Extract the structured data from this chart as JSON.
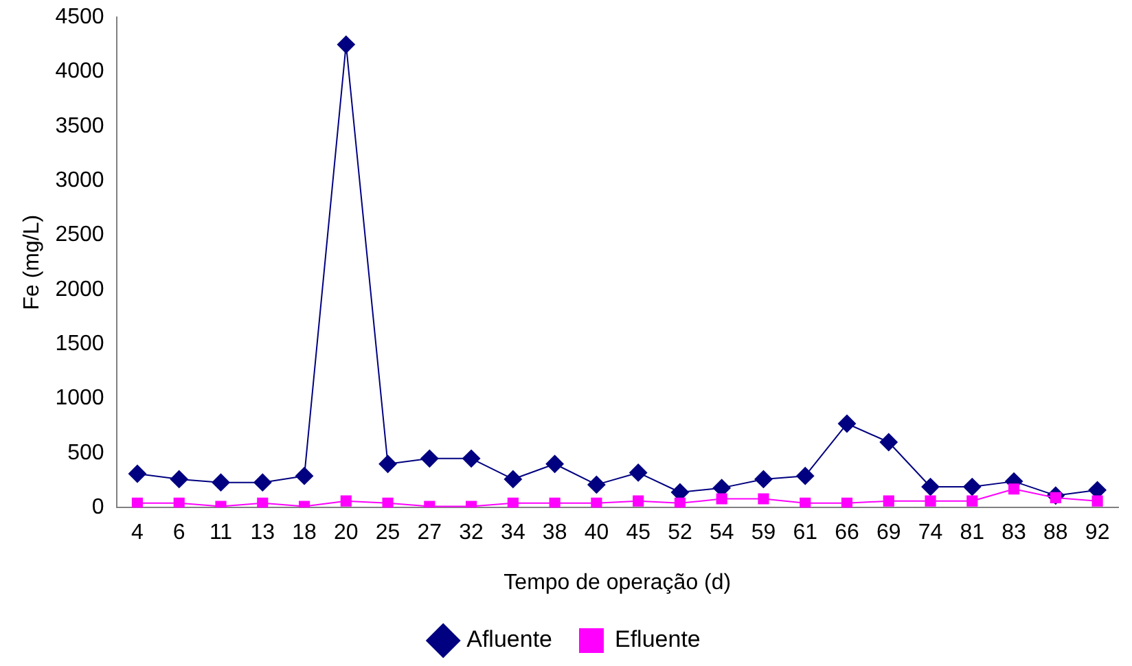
{
  "chart_data": {
    "type": "line",
    "xlabel": "Tempo de operação (d)",
    "ylabel": "Fe (mg/L)",
    "categories": [
      "4",
      "6",
      "11",
      "13",
      "18",
      "20",
      "25",
      "27",
      "32",
      "34",
      "38",
      "40",
      "45",
      "52",
      "54",
      "59",
      "61",
      "66",
      "69",
      "74",
      "81",
      "83",
      "88",
      "92"
    ],
    "series": [
      {
        "name": "Afluente",
        "color": "#000080",
        "marker": "diamond",
        "values": [
          310,
          260,
          230,
          230,
          290,
          4250,
          400,
          450,
          450,
          260,
          400,
          210,
          320,
          140,
          180,
          260,
          290,
          770,
          600,
          190,
          190,
          240,
          110,
          160
        ]
      },
      {
        "name": "Efluente",
        "color": "#ff00ff",
        "marker": "square",
        "values": [
          40,
          40,
          10,
          40,
          10,
          60,
          40,
          10,
          10,
          40,
          40,
          40,
          60,
          40,
          80,
          80,
          40,
          40,
          60,
          60,
          60,
          170,
          90,
          60
        ]
      }
    ],
    "ylim": [
      0,
      4500
    ],
    "yticks": [
      0,
      500,
      1000,
      1500,
      2000,
      2500,
      3000,
      3500,
      4000,
      4500
    ],
    "grid": false,
    "legend": "bottom",
    "line_style": "solid"
  }
}
